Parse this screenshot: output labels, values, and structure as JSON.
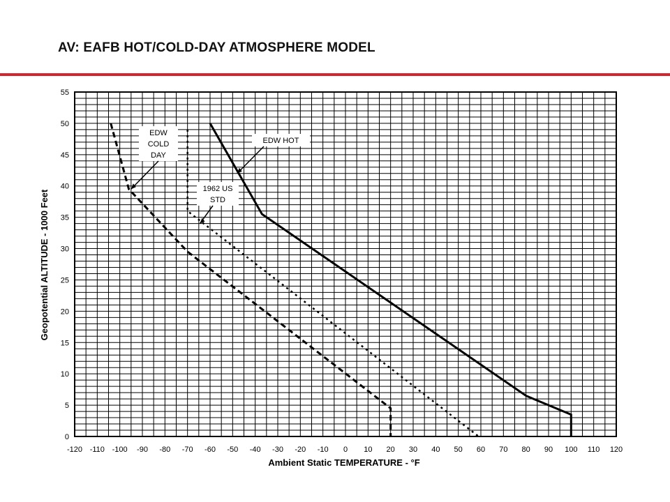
{
  "slide": {
    "title": "AV: EAFB HOT/COLD-DAY ATMOSPHERE MODEL",
    "accent_color": "#d6242e"
  },
  "chart_data": {
    "type": "line",
    "title": "",
    "xlabel": "Ambient Static TEMPERATURE - °F",
    "ylabel": "Geopotential ALTITUDE - 1000 Feet",
    "xlim": [
      -120,
      120
    ],
    "ylim": [
      0,
      55
    ],
    "x_ticks": [
      -120,
      -110,
      -100,
      -90,
      -80,
      -70,
      -60,
      -50,
      -40,
      -30,
      -20,
      -10,
      0,
      10,
      20,
      30,
      40,
      50,
      60,
      70,
      80,
      90,
      100,
      110,
      120
    ],
    "y_ticks": [
      0,
      5,
      10,
      15,
      20,
      25,
      30,
      35,
      40,
      45,
      50,
      55
    ],
    "x_minor_step": 5,
    "y_minor_step": 1,
    "grid": true,
    "series": [
      {
        "name": "EDW HOT",
        "style": "solid",
        "x": [
          -60,
          -37,
          80,
          100,
          100
        ],
        "y": [
          50,
          35.5,
          6.5,
          3.5,
          0
        ]
      },
      {
        "name": "EDW COLD DAY",
        "style": "dashed",
        "x": [
          -104,
          -96,
          -70,
          20,
          20
        ],
        "y": [
          50,
          39.5,
          29.5,
          4.5,
          0
        ]
      },
      {
        "name": "1962 US STD",
        "style": "dotted",
        "x": [
          -70,
          -70,
          59
        ],
        "y": [
          49,
          36,
          0
        ]
      }
    ],
    "annotations": [
      {
        "id": "cold",
        "lines": [
          "EDW",
          "COLD",
          "DAY"
        ]
      },
      {
        "id": "hot",
        "lines": [
          "EDW HOT"
        ]
      },
      {
        "id": "std",
        "lines": [
          "1962 US",
          "STD"
        ]
      }
    ]
  }
}
